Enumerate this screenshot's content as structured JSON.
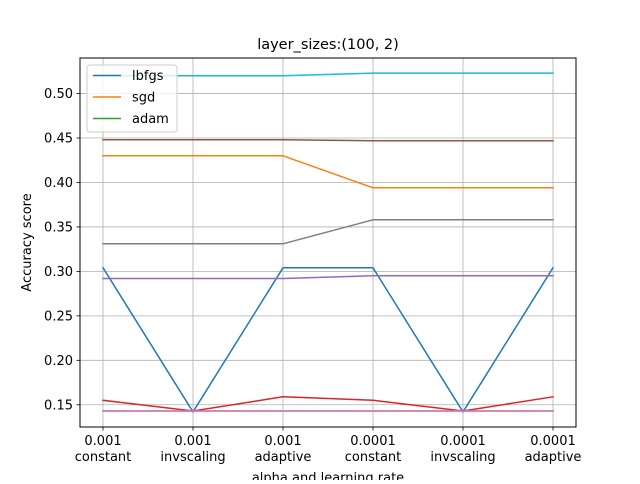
{
  "chart_data": {
    "type": "line",
    "title": "layer_sizes:(100, 2)",
    "xlabel": "alpha and learning rate",
    "ylabel": "Accuracy score",
    "categories": [
      [
        "0.001",
        "constant"
      ],
      [
        "0.001",
        "invscaling"
      ],
      [
        "0.001",
        "adaptive"
      ],
      [
        "0.0001",
        "constant"
      ],
      [
        "0.0001",
        "invscaling"
      ],
      [
        "0.0001",
        "adaptive"
      ]
    ],
    "ylim": [
      0.125,
      0.54
    ],
    "yticks": [
      "0.15",
      "0.20",
      "0.25",
      "0.30",
      "0.35",
      "0.40",
      "0.45",
      "0.50"
    ],
    "grid": true,
    "legend_position": "top-left",
    "legend": [
      "lbfgs",
      "sgd",
      "adam"
    ],
    "series": [
      {
        "name": "lbfgs",
        "color": "#1f77b4",
        "values": [
          0.304,
          0.142,
          0.304,
          0.304,
          0.142,
          0.304
        ]
      },
      {
        "name": "sgd",
        "color": "#ff7f0e",
        "values": [
          0.43,
          0.43,
          0.43,
          0.394,
          0.394,
          0.394
        ]
      },
      {
        "name": "adam",
        "color": "#2ca02c",
        "values": [
          0.143,
          0.143,
          0.143,
          0.143,
          0.143,
          0.143
        ]
      },
      {
        "color": "#d62728",
        "values": [
          0.155,
          0.143,
          0.159,
          0.155,
          0.143,
          0.159
        ]
      },
      {
        "color": "#9467bd",
        "values": [
          0.292,
          0.292,
          0.292,
          0.295,
          0.295,
          0.295
        ]
      },
      {
        "color": "#8c564b",
        "values": [
          0.448,
          0.448,
          0.448,
          0.447,
          0.447,
          0.447
        ]
      },
      {
        "color": "#e377c2",
        "values": [
          0.143,
          0.143,
          0.143,
          0.143,
          0.143,
          0.143
        ]
      },
      {
        "color": "#7f7f7f",
        "values": [
          0.331,
          0.331,
          0.331,
          0.358,
          0.358,
          0.358
        ]
      },
      {
        "color": "#17becf",
        "values": [
          0.52,
          0.52,
          0.52,
          0.523,
          0.523,
          0.523
        ]
      }
    ]
  }
}
